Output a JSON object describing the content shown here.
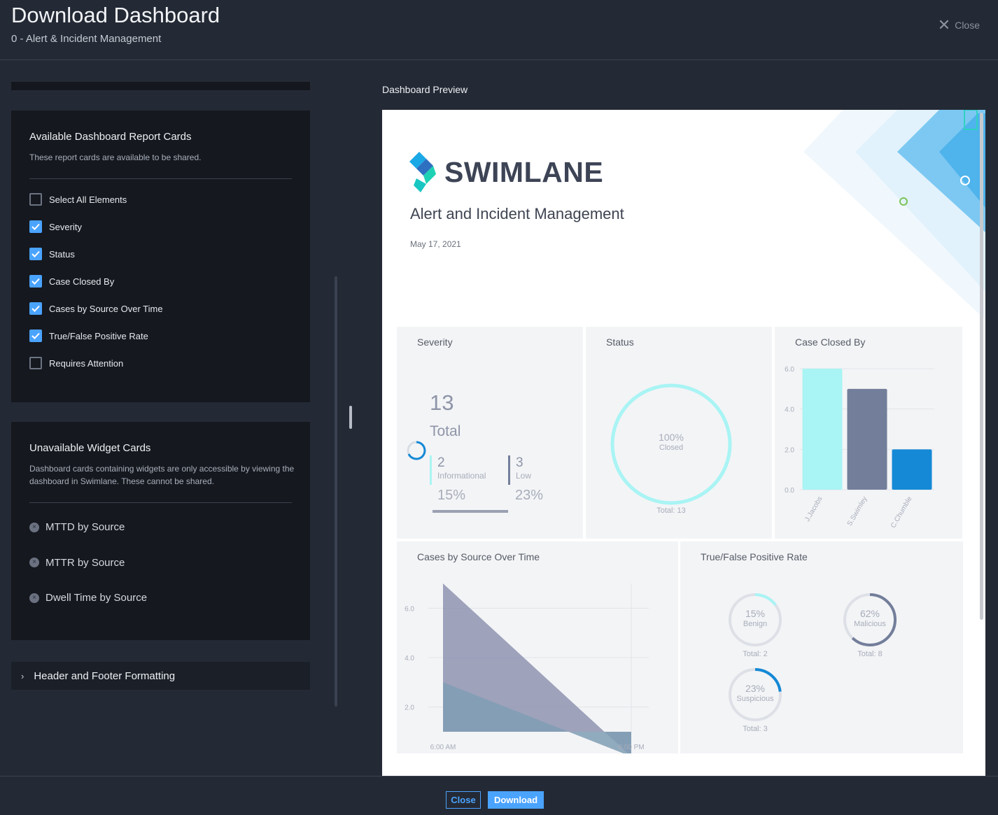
{
  "header": {
    "title": "Download Dashboard",
    "subtitle": "0 - Alert & Incident Management",
    "close_label": "Close"
  },
  "available": {
    "title": "Available Dashboard Report Cards",
    "description": "These report cards are available to be shared.",
    "items": [
      {
        "label": "Select All Elements",
        "checked": false
      },
      {
        "label": "Severity",
        "checked": true
      },
      {
        "label": "Status",
        "checked": true
      },
      {
        "label": "Case Closed By",
        "checked": true
      },
      {
        "label": "Cases by Source Over Time",
        "checked": true
      },
      {
        "label": "True/False Positive Rate",
        "checked": true
      },
      {
        "label": "Requires Attention",
        "checked": false
      }
    ]
  },
  "unavailable": {
    "title": "Unavailable Widget Cards",
    "description": "Dashboard cards containing widgets are only accessible by viewing the dashboard in Swimlane. These cannot be shared.",
    "items": [
      "MTTD by Source",
      "MTTR by Source",
      "Dwell Time by Source"
    ]
  },
  "accordion": {
    "label": "Header and Footer Formatting"
  },
  "preview": {
    "label": "Dashboard Preview",
    "logo_text": "SWIMLANE",
    "title": "Alert and Incident Management",
    "date": "May 17, 2021",
    "severity": {
      "title": "Severity",
      "total": "13",
      "total_label": "Total",
      "items": [
        {
          "count": "2",
          "label": "Informational",
          "pct": "15%"
        },
        {
          "count": "3",
          "label": "Low",
          "pct": "23%"
        }
      ]
    },
    "status": {
      "title": "Status",
      "pct": "100%",
      "label": "Closed",
      "total": "Total: 13"
    },
    "closed_by": {
      "title": "Case Closed By"
    },
    "over_time": {
      "title": "Cases by Source Over Time"
    },
    "tfp": {
      "title": "True/False Positive Rate",
      "donuts": [
        {
          "pct": "15%",
          "label": "Benign",
          "total": "Total: 2",
          "fraction": 0.15,
          "color": "#a9f4f4"
        },
        {
          "pct": "62%",
          "label": "Malicious",
          "total": "Total: 8",
          "fraction": 0.62,
          "color": "#737e9a"
        },
        {
          "pct": "23%",
          "label": "Suspicious",
          "total": "Total: 3",
          "fraction": 0.23,
          "color": "#1589d6"
        }
      ]
    }
  },
  "chart_data": [
    {
      "type": "bar",
      "title": "Case Closed By",
      "categories": [
        "J.Jacobs",
        "S.Swimley",
        "C.Chumble"
      ],
      "values": [
        6,
        5,
        2
      ],
      "colors": [
        "#a9f4f4",
        "#737e9a",
        "#1589d6"
      ],
      "ylim": [
        0,
        6
      ],
      "yticks": [
        "0.0",
        "2.0",
        "4.0",
        "6.0"
      ],
      "grid": true
    },
    {
      "type": "area",
      "title": "Cases by Source Over Time",
      "x": [
        "6:00 AM",
        "6:00 PM"
      ],
      "series": [
        {
          "values": [
            7,
            0
          ],
          "color": "#8e93b0"
        },
        {
          "values": [
            3,
            0
          ],
          "color": "#7f9db4"
        }
      ],
      "ylim": [
        1,
        7
      ],
      "yticks": [
        "2.0",
        "4.0",
        "6.0"
      ],
      "grid": true
    }
  ],
  "footer": {
    "close_label": "Close",
    "download_label": "Download"
  }
}
